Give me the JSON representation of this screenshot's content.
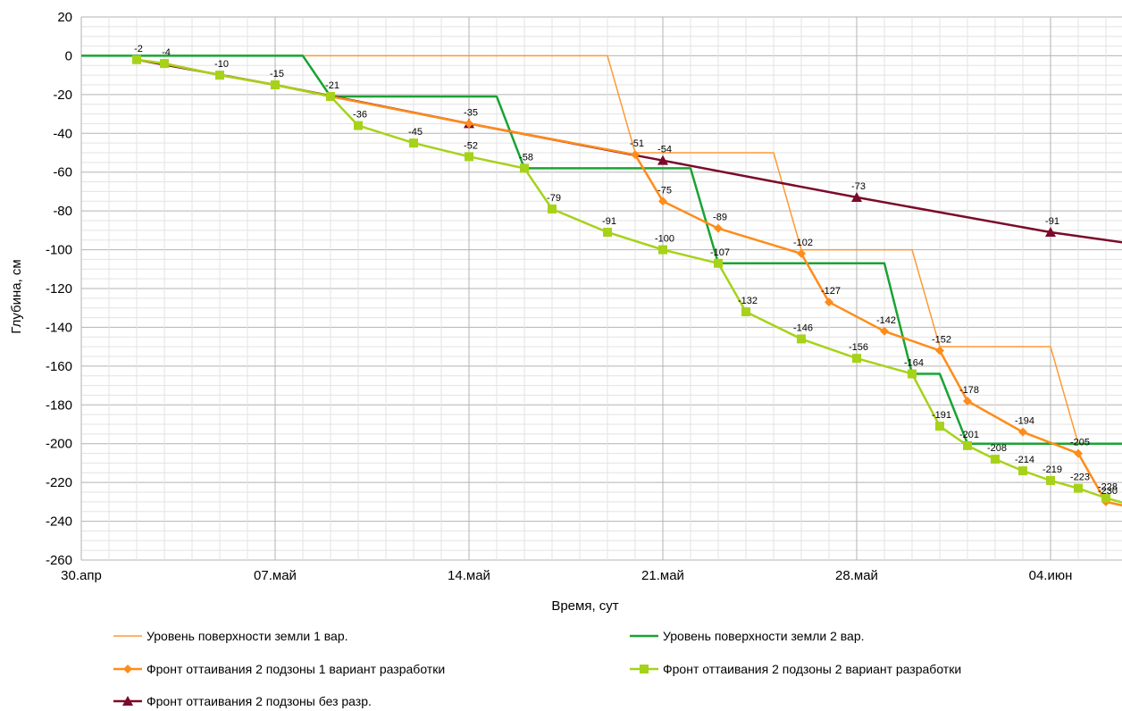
{
  "chart_data": {
    "type": "line",
    "title": "",
    "xlabel": "Время, сут",
    "ylabel": "Глубина, см",
    "ylim": [
      -260,
      20
    ],
    "yticks": [
      20,
      0,
      -20,
      -40,
      -60,
      -80,
      -100,
      -120,
      -140,
      -160,
      -180,
      -200,
      -220,
      -240,
      -260
    ],
    "xlim_days": [
      0,
      39
    ],
    "x_tick_labels": [
      {
        "label": "30.апр",
        "day": 0
      },
      {
        "label": "07.май",
        "day": 7
      },
      {
        "label": "14.май",
        "day": 14
      },
      {
        "label": "21.май",
        "day": 21
      },
      {
        "label": "28.май",
        "day": 28
      },
      {
        "label": "04.июн",
        "day": 35
      }
    ],
    "grid": true,
    "legend_position": "bottom",
    "series": [
      {
        "name": "Уровень поверхности земли 1 вар.",
        "color": "#ff9933",
        "marker": "none",
        "width": 1.5,
        "points": [
          [
            0,
            0
          ],
          [
            19,
            0
          ],
          [
            20,
            -50
          ],
          [
            25,
            -50
          ],
          [
            26,
            -100
          ],
          [
            30,
            -100
          ],
          [
            31,
            -150
          ],
          [
            35,
            -150
          ],
          [
            36,
            -200
          ],
          [
            39,
            -200
          ]
        ]
      },
      {
        "name": "Уровень поверхности земли 2 вар.",
        "color": "#1aa333",
        "marker": "none",
        "width": 2.5,
        "points": [
          [
            0,
            0
          ],
          [
            8,
            0
          ],
          [
            9,
            -21
          ],
          [
            15,
            -21
          ],
          [
            16,
            -58
          ],
          [
            22,
            -58
          ],
          [
            23,
            -107
          ],
          [
            29,
            -107
          ],
          [
            30,
            -164
          ],
          [
            31,
            -164
          ],
          [
            32,
            -200
          ],
          [
            39,
            -200
          ]
        ]
      },
      {
        "name": "Фронт оттаивания 2 подзоны 1 вариант разработки",
        "color": "#ff8c1a",
        "marker": "diamond",
        "width": 2.5,
        "points": [
          [
            2,
            -2
          ],
          [
            3,
            -4
          ],
          [
            5,
            -10
          ],
          [
            7,
            -15
          ],
          [
            9,
            -21
          ],
          [
            14,
            -35
          ],
          [
            20,
            -51
          ],
          [
            21,
            -75
          ],
          [
            23,
            -89
          ],
          [
            26,
            -102
          ],
          [
            27,
            -127
          ],
          [
            29,
            -142
          ],
          [
            31,
            -152
          ],
          [
            32,
            -178
          ],
          [
            34,
            -194
          ],
          [
            36,
            -205
          ],
          [
            37,
            -230
          ],
          [
            39,
            -236
          ]
        ],
        "labels": [
          [
            2,
            -2,
            "-2"
          ],
          [
            3,
            -4,
            "-4"
          ],
          [
            5,
            -10,
            "-10"
          ],
          [
            7,
            -15,
            "-15"
          ],
          [
            9,
            -21,
            "-21"
          ],
          [
            14,
            -35,
            "-35"
          ],
          [
            20,
            -51,
            "-51"
          ],
          [
            21,
            -75,
            "-75"
          ],
          [
            23,
            -89,
            "-89"
          ],
          [
            26,
            -102,
            "-102"
          ],
          [
            27,
            -127,
            "-127"
          ],
          [
            29,
            -142,
            "-142"
          ],
          [
            31,
            -152,
            "-152"
          ],
          [
            32,
            -178,
            "-178"
          ],
          [
            34,
            -194,
            "-194"
          ],
          [
            36,
            -205,
            "-205"
          ],
          [
            37,
            -230,
            "-230"
          ]
        ]
      },
      {
        "name": "Фронт оттаивания 2 подзоны 2 вариант разработки",
        "color": "#a6d21a",
        "marker": "square",
        "width": 2.5,
        "points": [
          [
            2,
            -2
          ],
          [
            3,
            -4
          ],
          [
            5,
            -10
          ],
          [
            7,
            -15
          ],
          [
            9,
            -21
          ],
          [
            10,
            -36
          ],
          [
            12,
            -45
          ],
          [
            14,
            -52
          ],
          [
            16,
            -58
          ],
          [
            17,
            -79
          ],
          [
            19,
            -91
          ],
          [
            21,
            -100
          ],
          [
            23,
            -107
          ],
          [
            24,
            -132
          ],
          [
            26,
            -146
          ],
          [
            28,
            -156
          ],
          [
            30,
            -164
          ],
          [
            31,
            -191
          ],
          [
            32,
            -201
          ],
          [
            33,
            -208
          ],
          [
            34,
            -214
          ],
          [
            35,
            -219
          ],
          [
            36,
            -223
          ],
          [
            37,
            -228
          ],
          [
            39,
            -236
          ]
        ],
        "labels": [
          [
            10,
            -36,
            "-36"
          ],
          [
            12,
            -45,
            "-45"
          ],
          [
            14,
            -52,
            "-52"
          ],
          [
            16,
            -58,
            "-58"
          ],
          [
            17,
            -79,
            "-79"
          ],
          [
            19,
            -91,
            "-91"
          ],
          [
            21,
            -100,
            "-100"
          ],
          [
            23,
            -107,
            "-107"
          ],
          [
            24,
            -132,
            "-132"
          ],
          [
            26,
            -146,
            "-146"
          ],
          [
            28,
            -156,
            "-156"
          ],
          [
            30,
            -164,
            "-164"
          ],
          [
            31,
            -191,
            "-191"
          ],
          [
            32,
            -201,
            "-201"
          ],
          [
            33,
            -208,
            "-208"
          ],
          [
            34,
            -214,
            "-214"
          ],
          [
            35,
            -219,
            "-219"
          ],
          [
            36,
            -223,
            "-223"
          ],
          [
            37,
            -228,
            "-228"
          ]
        ]
      },
      {
        "name": "Фронт оттаивания 2 подзоны без разр.",
        "color": "#7b0a2a",
        "marker": "triangle",
        "width": 2.5,
        "points": [
          [
            2,
            -2
          ],
          [
            7,
            -15
          ],
          [
            14,
            -35
          ],
          [
            21,
            -54
          ],
          [
            28,
            -73
          ],
          [
            35,
            -91
          ],
          [
            39,
            -99
          ]
        ],
        "markers_at": [
          [
            14,
            -35
          ],
          [
            21,
            -54
          ],
          [
            28,
            -73
          ],
          [
            35,
            -91
          ]
        ],
        "labels": [
          [
            21,
            -54,
            "-54"
          ],
          [
            28,
            -73,
            "-73"
          ],
          [
            35,
            -91,
            "-91"
          ]
        ]
      }
    ]
  }
}
